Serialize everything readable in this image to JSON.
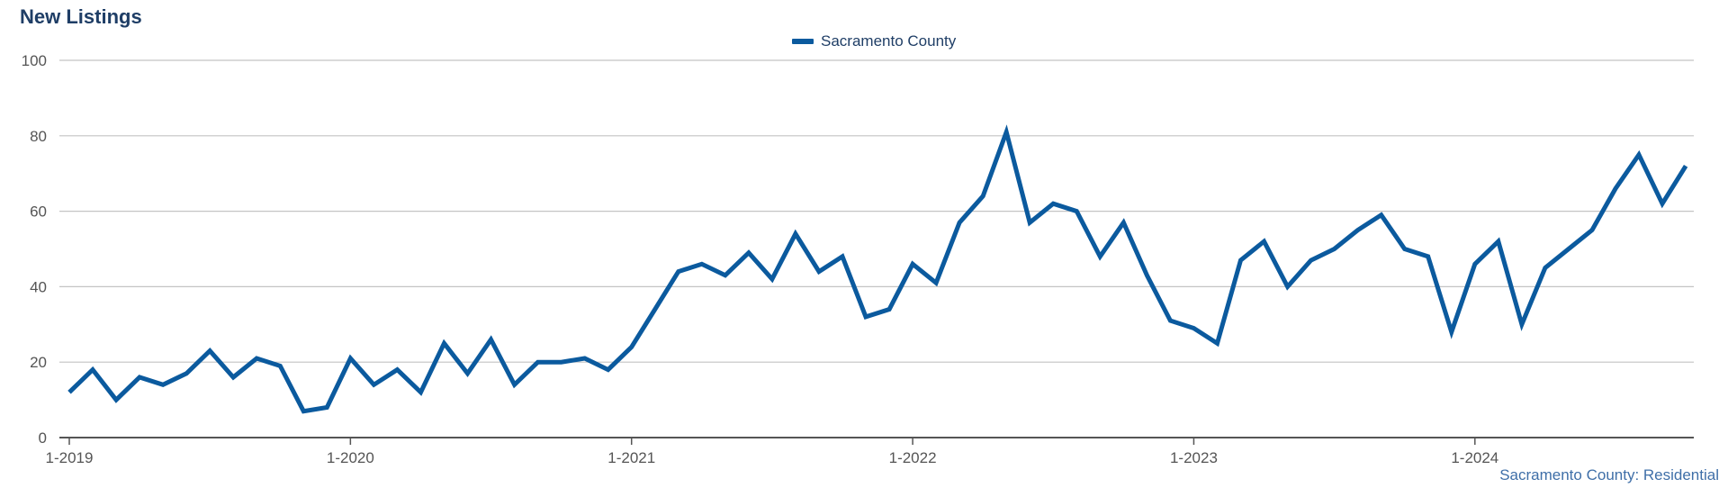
{
  "chart_data": {
    "type": "line",
    "title": "New Listings",
    "xlabel": "",
    "ylabel": "",
    "ylim": [
      0,
      100
    ],
    "yticks": [
      0,
      20,
      40,
      60,
      80,
      100
    ],
    "xticks": [
      "1-2019",
      "1-2020",
      "1-2021",
      "1-2022",
      "1-2023",
      "1-2024"
    ],
    "legend_position": "top-center",
    "grid": true,
    "source_note": "Sacramento County: Residential",
    "color": "#0b5a9e",
    "series": [
      {
        "name": "Sacramento County",
        "x": [
          "1-2019",
          "2-2019",
          "3-2019",
          "4-2019",
          "5-2019",
          "6-2019",
          "7-2019",
          "8-2019",
          "9-2019",
          "10-2019",
          "11-2019",
          "12-2019",
          "1-2020",
          "2-2020",
          "3-2020",
          "4-2020",
          "5-2020",
          "6-2020",
          "7-2020",
          "8-2020",
          "9-2020",
          "10-2020",
          "11-2020",
          "12-2020",
          "1-2021",
          "2-2021",
          "3-2021",
          "4-2021",
          "5-2021",
          "6-2021",
          "7-2021",
          "8-2021",
          "9-2021",
          "10-2021",
          "11-2021",
          "12-2021",
          "1-2022",
          "2-2022",
          "3-2022",
          "4-2022",
          "5-2022",
          "6-2022",
          "7-2022",
          "8-2022",
          "9-2022",
          "10-2022",
          "11-2022",
          "12-2022",
          "1-2023",
          "2-2023",
          "3-2023",
          "4-2023",
          "5-2023",
          "6-2023",
          "7-2023",
          "8-2023",
          "9-2023",
          "10-2023",
          "11-2023",
          "12-2023",
          "1-2024",
          "2-2024",
          "3-2024",
          "4-2024",
          "5-2024",
          "6-2024",
          "7-2024",
          "8-2024",
          "9-2024",
          "10-2024"
        ],
        "values": [
          12,
          18,
          10,
          16,
          14,
          17,
          23,
          16,
          21,
          19,
          7,
          8,
          21,
          14,
          18,
          12,
          25,
          17,
          26,
          14,
          20,
          20,
          21,
          18,
          24,
          34,
          44,
          46,
          43,
          49,
          42,
          54,
          44,
          48,
          32,
          34,
          46,
          41,
          57,
          64,
          81,
          57,
          62,
          60,
          48,
          57,
          43,
          31,
          29,
          25,
          47,
          52,
          40,
          47,
          50,
          55,
          59,
          50,
          48,
          28,
          46,
          52,
          30,
          45,
          50,
          55,
          66,
          75,
          62,
          72
        ]
      }
    ]
  }
}
